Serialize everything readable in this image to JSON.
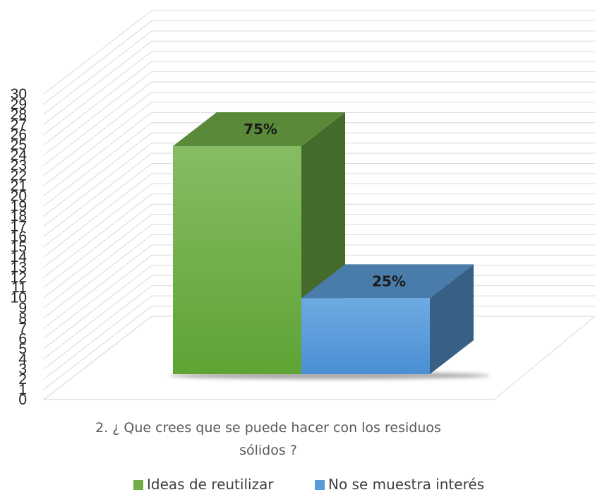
{
  "chart_data": {
    "type": "bar",
    "categories": [
      "2. ¿ Que crees que se puede hacer con los residuos sólidos ?"
    ],
    "category_lines": [
      "2. ¿ Que crees que se puede hacer con los residuos",
      "sólidos ?"
    ],
    "series": [
      {
        "name": "Ideas de reutilizar",
        "values": [
          24
        ],
        "data_label": "75%",
        "color": "#70ad47"
      },
      {
        "name": "No se muestra interés",
        "values": [
          8
        ],
        "data_label": "25%",
        "color": "#5b9bd5"
      }
    ],
    "ylim": [
      0,
      30
    ],
    "yticks": [
      "0",
      "1",
      "2",
      "3",
      "4",
      "5",
      "6",
      "7",
      "8",
      "9",
      "10",
      "11",
      "12",
      "13",
      "14",
      "15",
      "16",
      "17",
      "18",
      "19",
      "20",
      "21",
      "22",
      "23",
      "24",
      "25",
      "26",
      "27",
      "28",
      "29",
      "30"
    ],
    "grid": true,
    "legend_position": "bottom",
    "three_d": true
  }
}
